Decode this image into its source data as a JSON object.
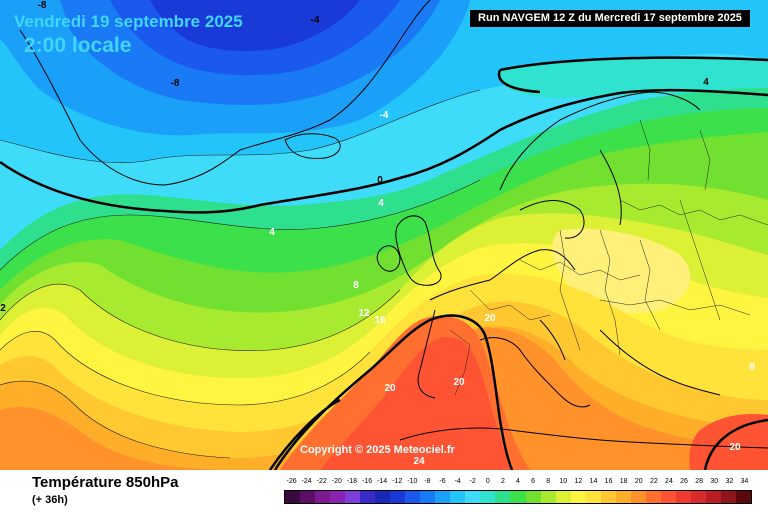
{
  "header": {
    "date": "Vendredi 19 septembre 2025",
    "time": "2:00 locale",
    "run": "Run NAVGEM 12 Z du Mercredi 17 septembre 2025"
  },
  "copyright": "Copyright © 2025 Meteociel.fr",
  "footer": {
    "title": "Température 850hPa",
    "subtitle": "(+ 36h)"
  },
  "legend": {
    "ticks": [
      "-26",
      "-24",
      "-22",
      "-20",
      "-18",
      "-16",
      "-14",
      "-12",
      "-10",
      "-8",
      "-6",
      "-4",
      "-2",
      "0",
      "2",
      "4",
      "6",
      "8",
      "10",
      "12",
      "14",
      "16",
      "18",
      "20",
      "22",
      "24",
      "26",
      "28",
      "30",
      "32",
      "34"
    ],
    "colors": [
      "#3a0a3e",
      "#5b0f66",
      "#7a1a8e",
      "#8a22b0",
      "#7b3ed8",
      "#3a2bc8",
      "#1a28b8",
      "#1a3ad8",
      "#1a58ee",
      "#1a7af5",
      "#1aa0f8",
      "#22c4fa",
      "#3edcf8",
      "#30e2d0",
      "#2ee08e",
      "#3ce04a",
      "#72e030",
      "#a8ea30",
      "#dcf036",
      "#fff440",
      "#ffe23a",
      "#ffc830",
      "#ffae2a",
      "#ff922a",
      "#ff7030",
      "#ff5434",
      "#f03a30",
      "#d82a2a",
      "#b81e24",
      "#8c141a",
      "#5a0a0e"
    ]
  },
  "map_labels": [
    {
      "text": "-8",
      "name": "isotherm-label-minus8-a"
    },
    {
      "text": "-4",
      "name": "isotherm-label-minus4-a"
    },
    {
      "text": "-8",
      "name": "isotherm-label-minus8-b"
    },
    {
      "text": "-4",
      "name": "isotherm-label-minus4-b"
    },
    {
      "text": "0",
      "name": "isotherm-label-0"
    },
    {
      "text": "4",
      "name": "isotherm-label-4-a"
    },
    {
      "text": "4",
      "name": "isotherm-label-4-b"
    },
    {
      "text": "4",
      "name": "isotherm-label-4-c"
    },
    {
      "text": "8",
      "name": "isotherm-label-8-a"
    },
    {
      "text": "12",
      "name": "isotherm-label-12"
    },
    {
      "text": "16",
      "name": "isotherm-label-16"
    },
    {
      "text": "20",
      "name": "isotherm-label-20-a"
    },
    {
      "text": "20",
      "name": "isotherm-label-20-b"
    },
    {
      "text": "20",
      "name": "isotherm-label-20-c"
    },
    {
      "text": "24",
      "name": "isotherm-label-24"
    },
    {
      "text": "8",
      "name": "isotherm-label-8-b"
    },
    {
      "text": "20",
      "name": "isotherm-label-20-d"
    },
    {
      "text": "2",
      "name": "isotherm-label-2"
    }
  ]
}
